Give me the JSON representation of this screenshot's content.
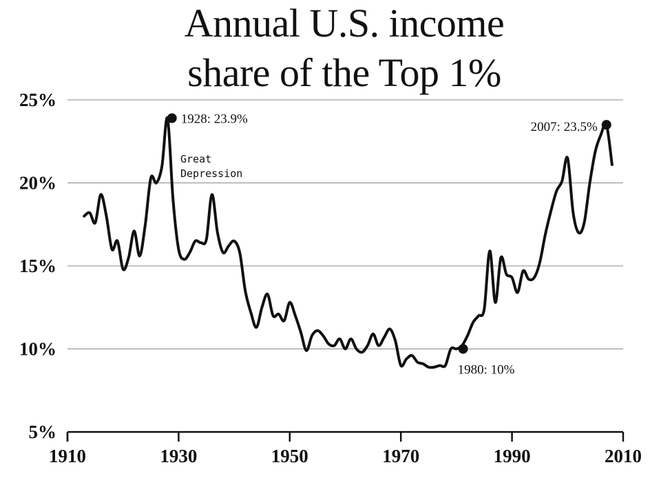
{
  "chart_data": {
    "type": "line",
    "title_lines": [
      "Annual U.S. income",
      "share of the Top 1%"
    ],
    "xlabel": "",
    "ylabel": "",
    "xlim": [
      1910,
      2010
    ],
    "ylim": [
      5,
      25
    ],
    "x_ticks": [
      "1910",
      "1930",
      "1950",
      "1970",
      "1990",
      "2010"
    ],
    "y_ticks": [
      "5%",
      "10%",
      "15%",
      "20%",
      "25%"
    ],
    "grid": "horizontal",
    "series": [
      {
        "x": [
          1913,
          1914,
          1915,
          1916,
          1917,
          1918,
          1919,
          1920,
          1921,
          1922,
          1923,
          1924,
          1925,
          1926,
          1927,
          1928,
          1929,
          1930,
          1931,
          1932,
          1933,
          1934,
          1935,
          1936,
          1937,
          1938,
          1939,
          1940,
          1941,
          1942,
          1943,
          1944,
          1945,
          1946,
          1947,
          1948,
          1949,
          1950,
          1951,
          1952,
          1953,
          1954,
          1955,
          1956,
          1957,
          1958,
          1959,
          1960,
          1961,
          1962,
          1963,
          1964,
          1965,
          1966,
          1967,
          1968,
          1969,
          1970,
          1971,
          1972,
          1973,
          1974,
          1975,
          1976,
          1977,
          1978,
          1979,
          1980,
          1981,
          1982,
          1983,
          1984,
          1985,
          1986,
          1987,
          1988,
          1989,
          1990,
          1991,
          1992,
          1993,
          1994,
          1995,
          1996,
          1997,
          1998,
          1999,
          2000,
          2001,
          2002,
          2003,
          2004,
          2005,
          2006,
          2007,
          2008
        ],
        "values": [
          18.0,
          18.2,
          17.6,
          19.3,
          18.0,
          16.0,
          16.5,
          14.8,
          15.5,
          17.1,
          15.6,
          17.5,
          20.3,
          20.0,
          21.0,
          23.9,
          19.0,
          16.0,
          15.4,
          15.8,
          16.5,
          16.4,
          16.6,
          19.3,
          17.0,
          15.8,
          16.2,
          16.5,
          15.8,
          13.5,
          12.2,
          11.3,
          12.5,
          13.3,
          12.0,
          12.1,
          11.7,
          12.8,
          12.0,
          11.0,
          9.9,
          10.8,
          11.1,
          10.8,
          10.3,
          10.2,
          10.6,
          10.0,
          10.6,
          10.0,
          9.8,
          10.2,
          10.9,
          10.2,
          10.7,
          11.2,
          10.5,
          9.0,
          9.4,
          9.6,
          9.2,
          9.1,
          8.9,
          8.9,
          9.0,
          9.0,
          10.0,
          10.0,
          10.2,
          10.8,
          11.6,
          12.0,
          12.4,
          15.9,
          12.8,
          15.5,
          14.5,
          14.3,
          13.4,
          14.7,
          14.2,
          14.3,
          15.2,
          16.9,
          18.3,
          19.5,
          20.1,
          21.5,
          18.2,
          17.0,
          17.6,
          20.0,
          21.9,
          22.9,
          23.5,
          21.1
        ]
      }
    ],
    "annotations": [
      {
        "label": "1928: 23.9%",
        "x": 1928.8,
        "y": 23.9,
        "side": "right"
      },
      {
        "label": "1980: 10%",
        "x": 1981.2,
        "y": 10.0,
        "side": "below-right"
      },
      {
        "label": "2007: 23.5%",
        "x": 2007,
        "y": 23.5,
        "side": "left"
      }
    ],
    "text_notes": [
      "Great",
      "Depression"
    ],
    "colors": {
      "line": "#111111",
      "grid": "#888888",
      "axis": "#111111",
      "text": "#111111"
    }
  }
}
